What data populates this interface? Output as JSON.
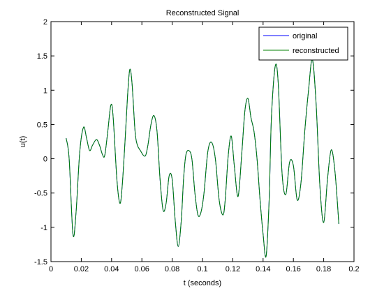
{
  "chart_data": {
    "type": "line",
    "title": "Reconstructed Signal",
    "xlabel": "t (seconds)",
    "ylabel": "u(t)",
    "xlim": [
      0,
      0.2
    ],
    "ylim": [
      -1.5,
      2
    ],
    "xticks": [
      0,
      0.02,
      0.04,
      0.06,
      0.08,
      0.1,
      0.12,
      0.14,
      0.16,
      0.18,
      0.2
    ],
    "xtick_labels": [
      "0",
      "0.02",
      "0.04",
      "0.06",
      "0.08",
      "0.1",
      "0.12",
      "0.14",
      "0.16",
      "0.18",
      "0.2"
    ],
    "yticks": [
      -1.5,
      -1,
      -0.5,
      0,
      0.5,
      1,
      1.5,
      2
    ],
    "ytick_labels": [
      "-1.5",
      "-1",
      "-0.5",
      "0",
      "0.5",
      "1",
      "1.5",
      "2"
    ],
    "grid": false,
    "legend_position": "top-right",
    "series": [
      {
        "name": "original",
        "color": "#0000ff",
        "x": [
          0.01,
          0.012,
          0.0145,
          0.0165,
          0.019,
          0.0215,
          0.0235,
          0.0255,
          0.0275,
          0.03,
          0.032,
          0.034,
          0.0355,
          0.0375,
          0.0395,
          0.041,
          0.0435,
          0.0455,
          0.047,
          0.049,
          0.0505,
          0.052,
          0.0535,
          0.0555,
          0.057,
          0.059,
          0.061,
          0.0625,
          0.064,
          0.066,
          0.068,
          0.07,
          0.072,
          0.074,
          0.076,
          0.078,
          0.08,
          0.082,
          0.084,
          0.086,
          0.0875,
          0.089,
          0.091,
          0.093,
          0.095,
          0.097,
          0.099,
          0.101,
          0.1035,
          0.106,
          0.1085,
          0.111,
          0.1135,
          0.115,
          0.117,
          0.119,
          0.121,
          0.1235,
          0.126,
          0.128,
          0.13,
          0.132,
          0.134,
          0.136,
          0.138,
          0.14,
          0.142,
          0.144,
          0.1455,
          0.148,
          0.15,
          0.1525,
          0.155,
          0.1575,
          0.16,
          0.1625,
          0.165,
          0.1675,
          0.17,
          0.1725,
          0.175,
          0.1775,
          0.18,
          0.1825,
          0.185,
          0.1875,
          0.19
        ],
        "values": [
          0.3,
          0.0,
          -1.1,
          -0.8,
          0.1,
          0.46,
          0.3,
          0.12,
          0.2,
          0.28,
          0.2,
          0.06,
          0.05,
          0.4,
          0.78,
          0.62,
          -0.3,
          -0.65,
          -0.4,
          0.3,
          0.9,
          1.3,
          1.1,
          0.4,
          0.2,
          0.12,
          0.05,
          0.05,
          0.2,
          0.5,
          0.63,
          0.4,
          -0.3,
          -0.75,
          -0.65,
          -0.25,
          -0.3,
          -0.9,
          -1.28,
          -0.9,
          -0.3,
          0.05,
          0.12,
          0.0,
          -0.5,
          -0.82,
          -0.78,
          -0.5,
          0.1,
          0.24,
          0.0,
          -0.6,
          -0.82,
          -0.6,
          0.05,
          0.33,
          -0.1,
          -0.55,
          0.1,
          0.7,
          0.88,
          0.6,
          0.4,
          0.0,
          -0.6,
          -1.1,
          -1.42,
          -0.6,
          0.6,
          1.35,
          1.1,
          -0.2,
          -0.52,
          -0.05,
          -0.1,
          -0.6,
          -0.35,
          0.4,
          1.0,
          1.45,
          0.8,
          -0.4,
          -0.93,
          -0.3,
          0.13,
          -0.2,
          -0.95
        ]
      },
      {
        "name": "reconstructed",
        "color": "#008000",
        "x": [
          0.01,
          0.012,
          0.0145,
          0.0165,
          0.019,
          0.0215,
          0.0235,
          0.0255,
          0.0275,
          0.03,
          0.032,
          0.034,
          0.0355,
          0.0375,
          0.0395,
          0.041,
          0.0435,
          0.0455,
          0.047,
          0.049,
          0.0505,
          0.052,
          0.0535,
          0.0555,
          0.057,
          0.059,
          0.061,
          0.0625,
          0.064,
          0.066,
          0.068,
          0.07,
          0.072,
          0.074,
          0.076,
          0.078,
          0.08,
          0.082,
          0.084,
          0.086,
          0.0875,
          0.089,
          0.091,
          0.093,
          0.095,
          0.097,
          0.099,
          0.101,
          0.1035,
          0.106,
          0.1085,
          0.111,
          0.1135,
          0.115,
          0.117,
          0.119,
          0.121,
          0.1235,
          0.126,
          0.128,
          0.13,
          0.132,
          0.134,
          0.136,
          0.138,
          0.14,
          0.142,
          0.144,
          0.1455,
          0.148,
          0.15,
          0.1525,
          0.155,
          0.1575,
          0.16,
          0.1625,
          0.165,
          0.1675,
          0.17,
          0.1725,
          0.175,
          0.1775,
          0.18,
          0.1825,
          0.185,
          0.1875,
          0.19
        ],
        "values": [
          0.3,
          0.0,
          -1.1,
          -0.8,
          0.1,
          0.46,
          0.3,
          0.12,
          0.2,
          0.28,
          0.2,
          0.06,
          0.05,
          0.4,
          0.78,
          0.62,
          -0.3,
          -0.65,
          -0.4,
          0.3,
          0.9,
          1.3,
          1.1,
          0.4,
          0.2,
          0.12,
          0.05,
          0.05,
          0.2,
          0.5,
          0.63,
          0.4,
          -0.3,
          -0.75,
          -0.65,
          -0.25,
          -0.3,
          -0.9,
          -1.28,
          -0.9,
          -0.3,
          0.05,
          0.12,
          0.0,
          -0.5,
          -0.82,
          -0.78,
          -0.5,
          0.1,
          0.24,
          0.0,
          -0.6,
          -0.82,
          -0.6,
          0.05,
          0.33,
          -0.1,
          -0.55,
          0.1,
          0.7,
          0.88,
          0.6,
          0.4,
          0.0,
          -0.6,
          -1.1,
          -1.42,
          -0.6,
          0.6,
          1.35,
          1.1,
          -0.2,
          -0.52,
          -0.05,
          -0.1,
          -0.6,
          -0.35,
          0.4,
          1.0,
          1.45,
          0.8,
          -0.4,
          -0.93,
          -0.3,
          0.13,
          -0.2,
          -0.95
        ]
      }
    ]
  }
}
